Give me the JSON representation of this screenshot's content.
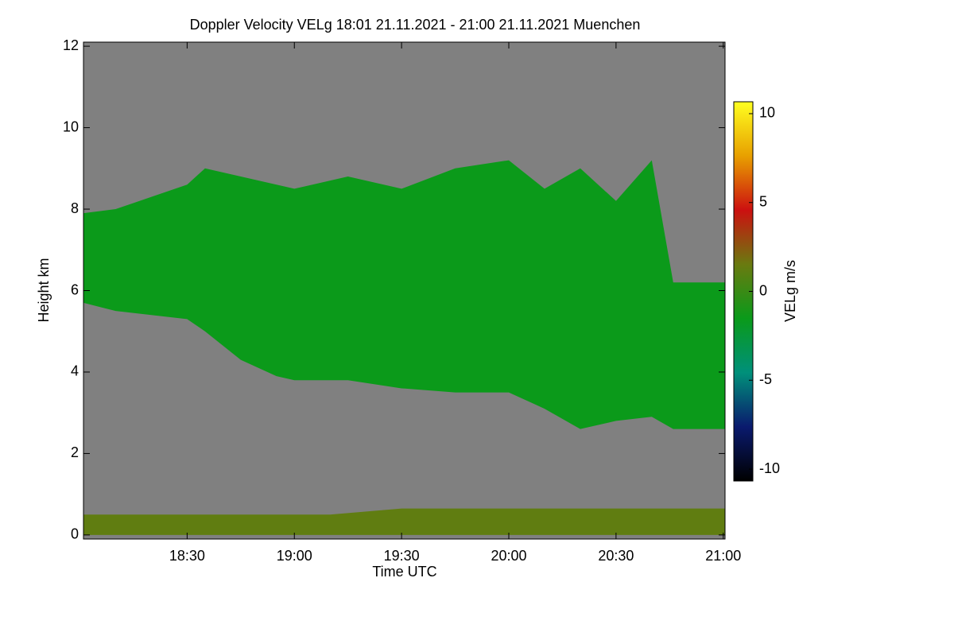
{
  "chart_data": {
    "type": "heatmap",
    "title": "Doppler Velocity VELg   18:01 21.11.2021 - 21:00 21.11.2021 Muenchen",
    "x_label": "Time UTC",
    "y_label": "Height km",
    "colorbar_label": "VELg m/s",
    "xlim": [
      1081,
      1260.5
    ],
    "xticks": [
      {
        "value": 1110,
        "label": "18:30"
      },
      {
        "value": 1140,
        "label": "19:00"
      },
      {
        "value": 1170,
        "label": "19:30"
      },
      {
        "value": 1200,
        "label": "20:00"
      },
      {
        "value": 1230,
        "label": "20:30"
      },
      {
        "value": 1260,
        "label": "21:00"
      }
    ],
    "ylim": [
      -0.1,
      12.1
    ],
    "yticks": [
      0,
      2,
      4,
      6,
      8,
      10,
      12
    ],
    "clim": [
      -10.67,
      10.67
    ],
    "cticks": [
      -10,
      -5,
      0,
      5,
      10
    ],
    "colormap": [
      "#000000",
      "#0a1a6e",
      "#00907a",
      "#0a9a1a",
      "#6a7a10",
      "#cc1010",
      "#e8a000",
      "#ffff20"
    ],
    "background": "#808080",
    "regions": [
      {
        "x": [
          1081,
          1090,
          1100,
          1110,
          1115,
          1125,
          1135,
          1140,
          1155,
          1170,
          1185,
          1200,
          1210,
          1220,
          1230,
          1240,
          1246,
          1260.5
        ],
        "top": [
          7.9,
          8.0,
          8.3,
          8.6,
          9.0,
          8.8,
          8.6,
          8.5,
          8.8,
          8.5,
          9.0,
          9.2,
          8.5,
          9.0,
          8.2,
          9.2,
          6.2,
          6.2
        ],
        "base": [
          5.7,
          5.5,
          5.4,
          5.3,
          5.0,
          4.3,
          3.9,
          3.8,
          3.8,
          3.6,
          3.5,
          3.5,
          3.1,
          2.6,
          2.8,
          2.9,
          2.6,
          2.6
        ],
        "velocity": -1.5
      },
      {
        "x": [
          1081,
          1150,
          1170,
          1260.5
        ],
        "top": [
          0.5,
          0.5,
          0.65,
          0.65
        ],
        "base": [
          0,
          0,
          0,
          0
        ],
        "velocity": 1.2
      }
    ]
  }
}
